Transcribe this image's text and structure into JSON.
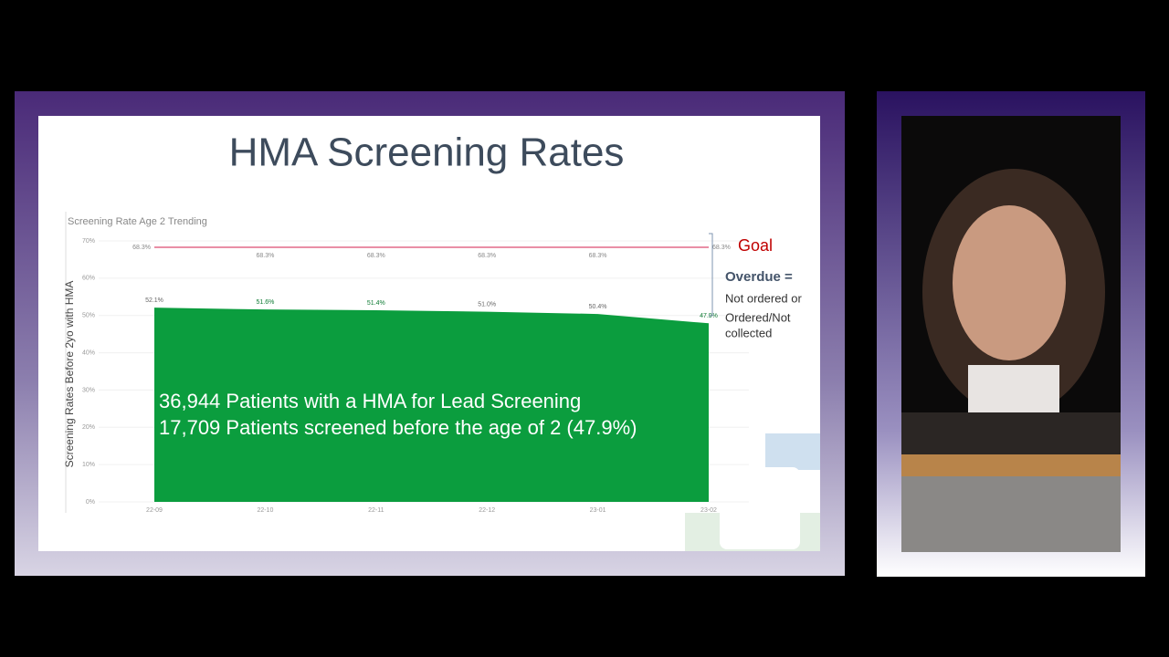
{
  "slide": {
    "title": "HMA Screening Rates",
    "overlay_lines": [
      "36,944 Patients with a HMA for Lead Screening",
      "17,709 Patients screened before the age of 2 (47.9%)"
    ],
    "goal_label": "Goal",
    "overdue": {
      "title": "Overdue =",
      "lines": [
        "Not ordered or",
        "Ordered/Not",
        "collected"
      ]
    }
  },
  "chart_data": {
    "type": "area",
    "title": "Screening Rate Age 2 Trending",
    "y_label": "Screening Rates Before 2yo with HMA",
    "categories": [
      "22-09",
      "22-10",
      "22-11",
      "22-12",
      "23-01",
      "23-02"
    ],
    "series": [
      {
        "color": "#0b9d3e",
        "values": [
          52.1,
          51.6,
          51.4,
          51.0,
          50.4,
          47.9
        ],
        "value_labels": [
          "52.1%",
          "51.6%",
          "51.4%",
          "51.0%",
          "50.4%",
          "47.9%"
        ]
      },
      {
        "color": "#e98fa6",
        "values": [
          68.3,
          68.3,
          68.3,
          68.3,
          68.3,
          68.3
        ],
        "value_labels": [
          "68.3%",
          "68.3%",
          "68.3%",
          "68.3%",
          "68.3%",
          "68.3%"
        ]
      }
    ],
    "ylim": [
      0,
      70
    ],
    "yticks": [
      {
        "value": 0,
        "label": "0%"
      },
      {
        "value": 10,
        "label": "10%"
      },
      {
        "value": 20,
        "label": "20%"
      },
      {
        "value": 30,
        "label": "30%"
      },
      {
        "value": 40,
        "label": "40%"
      },
      {
        "value": 50,
        "label": "50%"
      },
      {
        "value": 60,
        "label": "60%"
      },
      {
        "value": 70,
        "label": "70%"
      }
    ],
    "grid": true
  }
}
